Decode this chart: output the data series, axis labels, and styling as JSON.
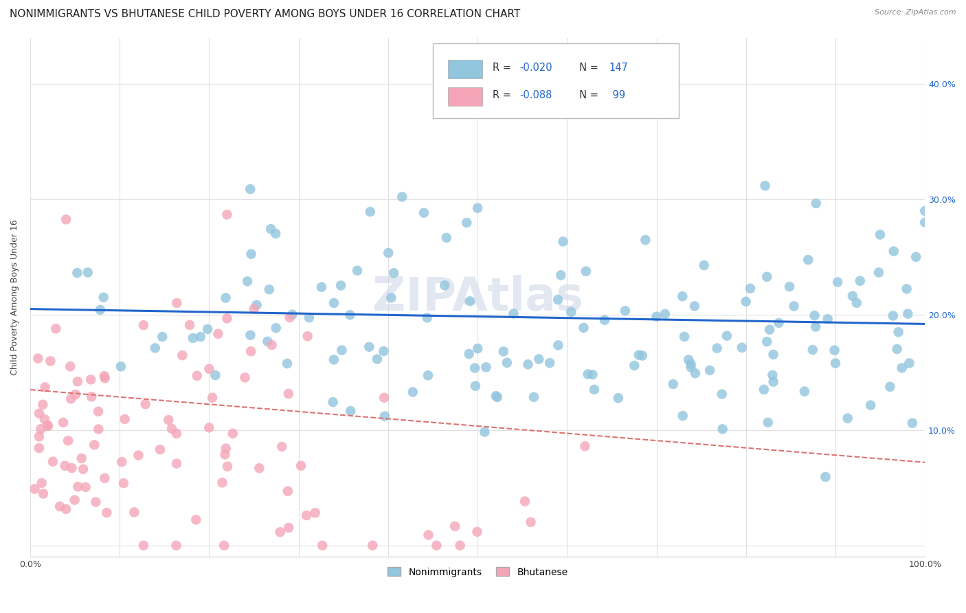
{
  "title": "NONIMMIGRANTS VS BHUTANESE CHILD POVERTY AMONG BOYS UNDER 16 CORRELATION CHART",
  "source": "Source: ZipAtlas.com",
  "ylabel": "Child Poverty Among Boys Under 16",
  "xlim": [
    0,
    1.0
  ],
  "ylim": [
    -0.01,
    0.44
  ],
  "blue_R": "-0.020",
  "blue_N": "147",
  "pink_R": "-0.088",
  "pink_N": " 99",
  "blue_color": "#92c5de",
  "pink_color": "#f4a6b8",
  "blue_line_color": "#2166cc",
  "pink_line_color": "#e07070",
  "blue_trend_y_start": 0.205,
  "blue_trend_y_end": 0.192,
  "pink_trend_y_start": 0.135,
  "pink_trend_y_end": 0.072,
  "background_color": "#ffffff",
  "grid_color": "#e0e0e0",
  "title_fontsize": 11,
  "axis_label_fontsize": 9,
  "tick_fontsize": 9,
  "legend_fontsize": 10,
  "source_fontsize": 8,
  "watermark_fontsize": 48,
  "watermark_color": "#d0d8e8",
  "watermark_alpha": 0.6
}
